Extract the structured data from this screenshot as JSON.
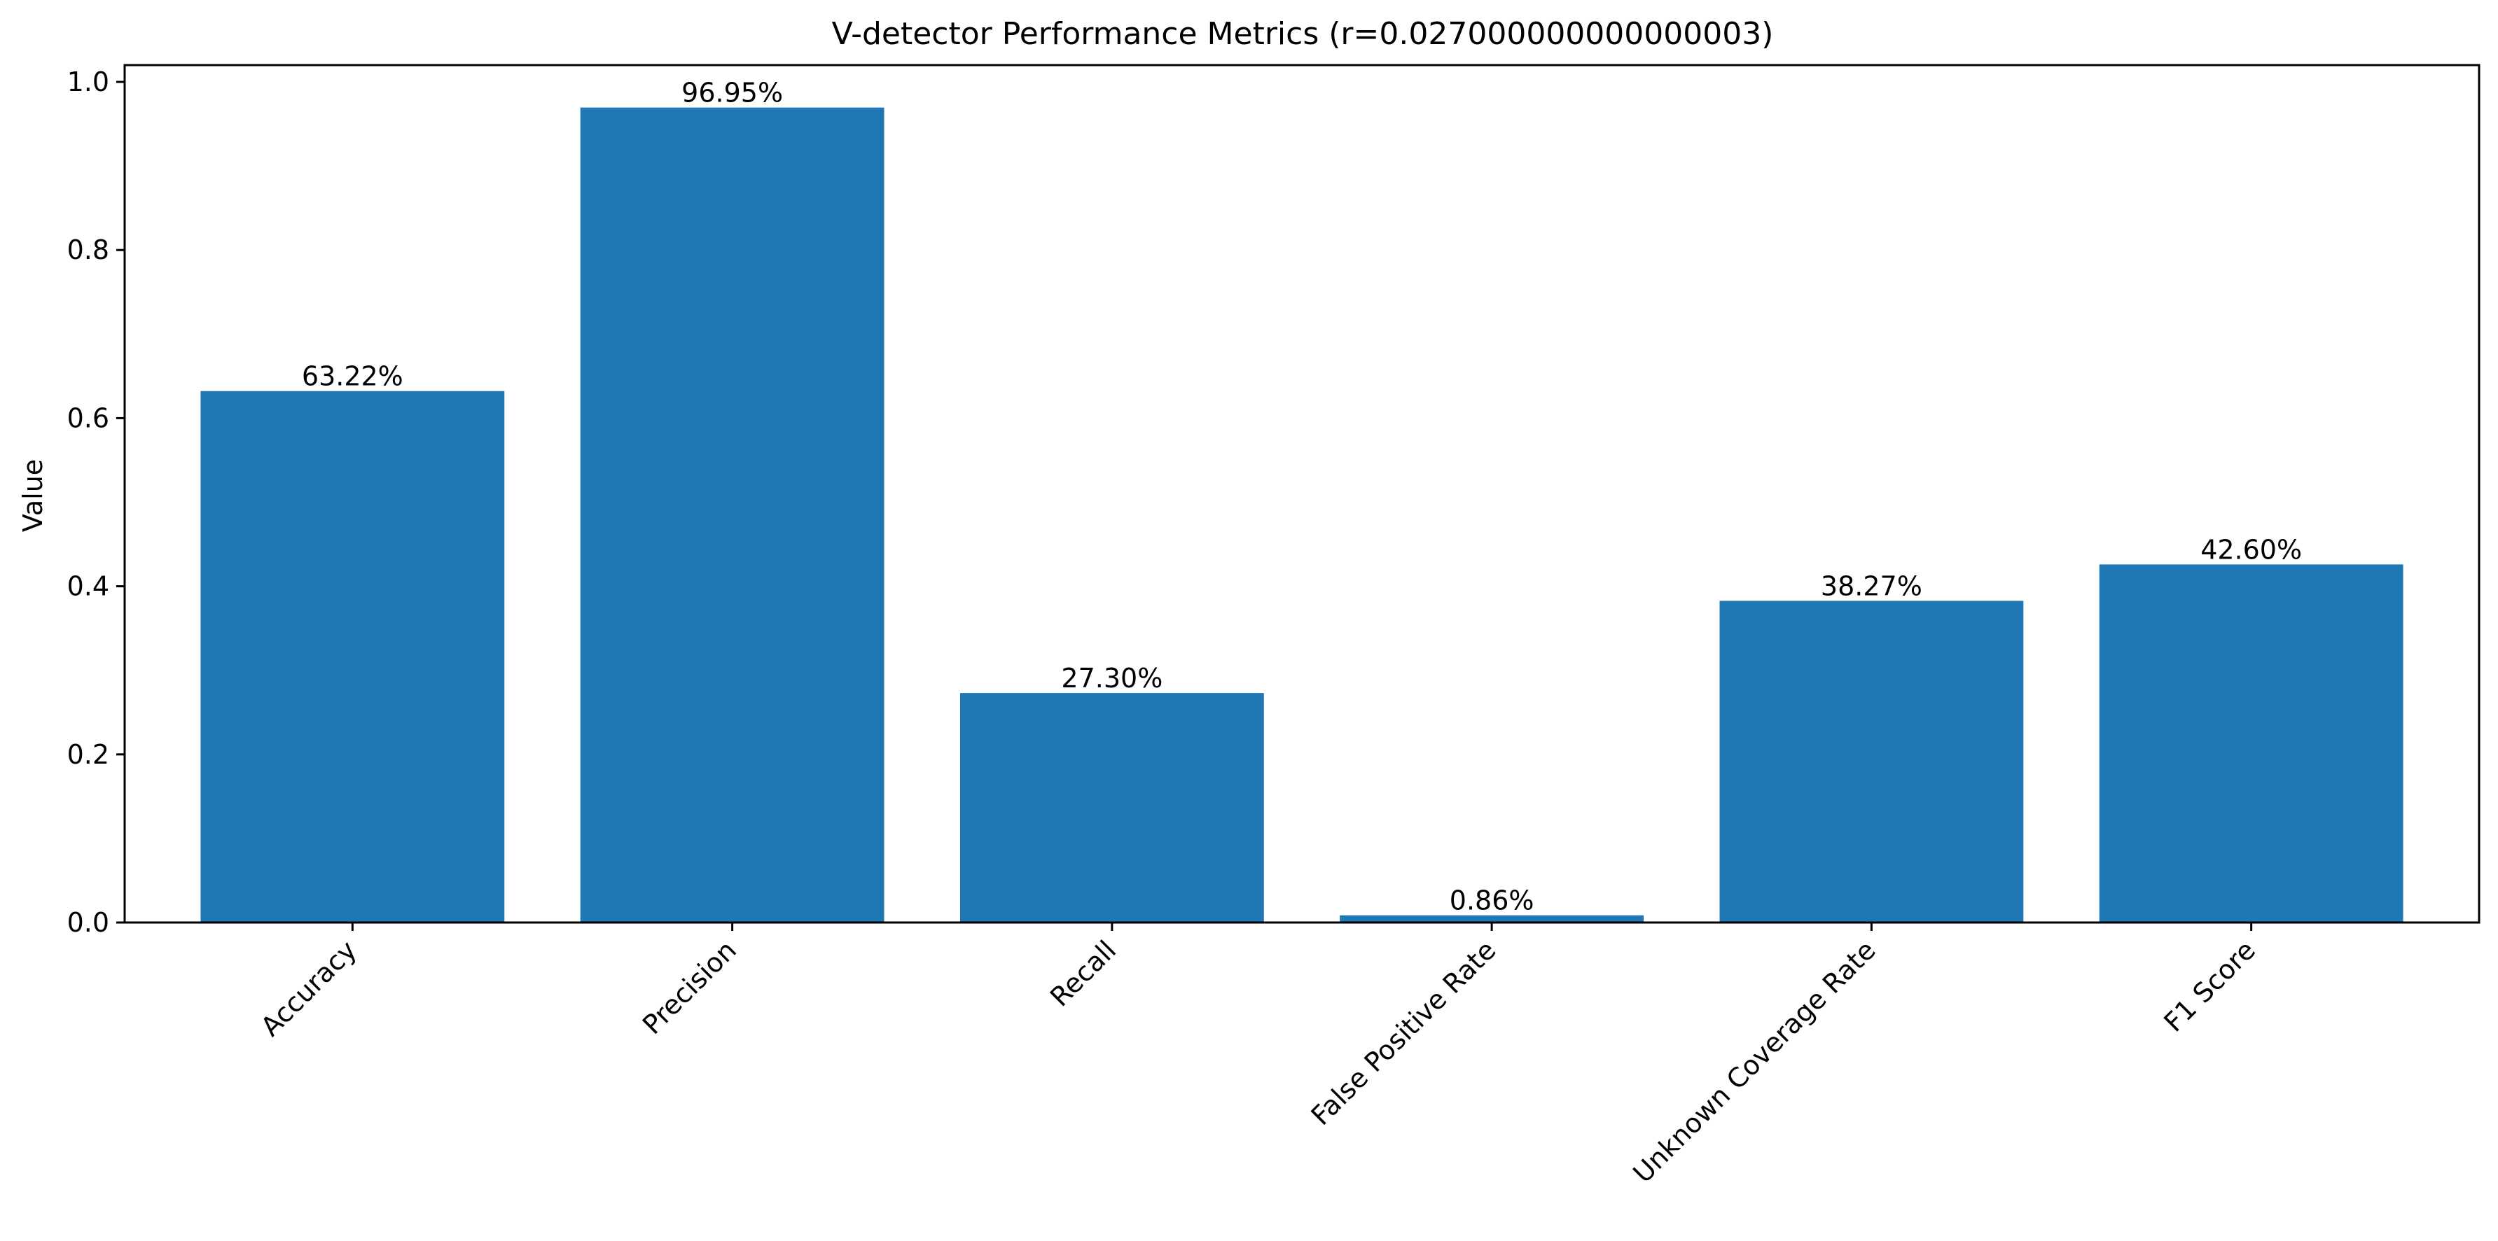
{
  "chart_data": {
    "type": "bar",
    "title": "V-detector Performance Metrics (r=0.027000000000000003)",
    "xlabel": "",
    "ylabel": "Value",
    "categories": [
      "Accuracy",
      "Precision",
      "Recall",
      "False Positive Rate",
      "Unknown Coverage Rate",
      "F1 Score"
    ],
    "values": [
      0.6322,
      0.9695,
      0.273,
      0.0086,
      0.3827,
      0.426
    ],
    "data_labels": [
      "63.22%",
      "96.95%",
      "27.30%",
      "0.86%",
      "38.27%",
      "42.60%"
    ],
    "ylim": [
      0,
      1.02
    ],
    "yticks": [
      0.0,
      0.2,
      0.4,
      0.6,
      0.8,
      1.0
    ],
    "ytick_labels": [
      "0.0",
      "0.2",
      "0.4",
      "0.6",
      "0.8",
      "1.0"
    ],
    "grid": false,
    "bar_color": "#1f77b4"
  }
}
